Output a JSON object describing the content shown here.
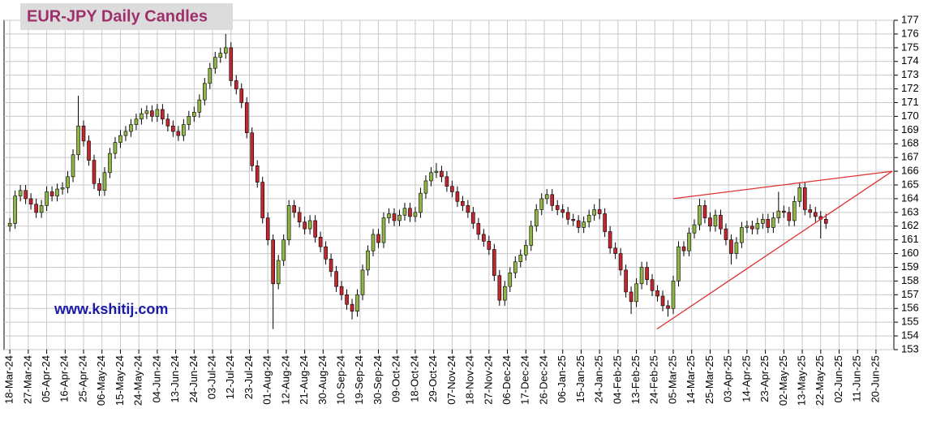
{
  "chart_data": {
    "type": "candlestick",
    "title": "EUR-JPY Daily  Candles",
    "watermark": "www.kshitij.com",
    "up_color": "#8fb546",
    "down_color": "#c1272d",
    "grid": true,
    "ylim": [
      153,
      177
    ],
    "yticks": [
      153,
      154,
      155,
      156,
      157,
      158,
      159,
      160,
      161,
      162,
      163,
      164,
      165,
      166,
      167,
      168,
      169,
      170,
      171,
      172,
      173,
      174,
      175,
      176,
      177
    ],
    "xlim": [
      -1.1,
      167.9
    ],
    "xticks": [
      {
        "value": 0,
        "label": "18-Mar-24"
      },
      {
        "value": 3.5,
        "label": "27-Mar-24"
      },
      {
        "value": 7,
        "label": "05-Apr-24"
      },
      {
        "value": 10.5,
        "label": "16-Apr-24"
      },
      {
        "value": 14,
        "label": "25-Apr-24"
      },
      {
        "value": 17.5,
        "label": "06-May-24"
      },
      {
        "value": 21,
        "label": "15-May-24"
      },
      {
        "value": 24.5,
        "label": "24-May-24"
      },
      {
        "value": 28,
        "label": "04-Jun-24"
      },
      {
        "value": 31.5,
        "label": "13-Jun-24"
      },
      {
        "value": 35,
        "label": "24-Jun-24"
      },
      {
        "value": 38.5,
        "label": "03-Jul-24"
      },
      {
        "value": 42,
        "label": "12-Jul-24"
      },
      {
        "value": 45.5,
        "label": "23-Jul-24"
      },
      {
        "value": 49,
        "label": "01-Aug-24"
      },
      {
        "value": 52.5,
        "label": "12-Aug-24"
      },
      {
        "value": 56,
        "label": "21-Aug-24"
      },
      {
        "value": 59.5,
        "label": "30-Aug-24"
      },
      {
        "value": 63,
        "label": "10-Sep-24"
      },
      {
        "value": 66.5,
        "label": "19-Sep-24"
      },
      {
        "value": 70,
        "label": "30-Sep-24"
      },
      {
        "value": 73.5,
        "label": "09-Oct-24"
      },
      {
        "value": 77,
        "label": "18-Oct-24"
      },
      {
        "value": 80.5,
        "label": "29-Oct-24"
      },
      {
        "value": 84,
        "label": "07-Nov-24"
      },
      {
        "value": 87.5,
        "label": "18-Nov-24"
      },
      {
        "value": 91,
        "label": "27-Nov-24"
      },
      {
        "value": 94.5,
        "label": "06-Dec-24"
      },
      {
        "value": 98,
        "label": "17-Dec-24"
      },
      {
        "value": 101.5,
        "label": "26-Dec-24"
      },
      {
        "value": 105,
        "label": "06-Jan-25"
      },
      {
        "value": 108.5,
        "label": "15-Jan-25"
      },
      {
        "value": 112,
        "label": "24-Jan-25"
      },
      {
        "value": 115.5,
        "label": "04-Feb-25"
      },
      {
        "value": 119,
        "label": "13-Feb-25"
      },
      {
        "value": 122.5,
        "label": "24-Feb-25"
      },
      {
        "value": 126,
        "label": "05-Mar-25"
      },
      {
        "value": 129.5,
        "label": "14-Mar-25"
      },
      {
        "value": 133,
        "label": "25-Mar-25"
      },
      {
        "value": 136.5,
        "label": "03-Apr-25"
      },
      {
        "value": 140,
        "label": "14-Apr-25"
      },
      {
        "value": 143.5,
        "label": "23-Apr-25"
      },
      {
        "value": 147,
        "label": "02-May-25"
      },
      {
        "value": 150.5,
        "label": "13-May-25"
      },
      {
        "value": 154,
        "label": "22-May-25"
      },
      {
        "value": 157.5,
        "label": "02-Jun-25"
      },
      {
        "value": 161,
        "label": "11-Jun-25"
      },
      {
        "value": 164.5,
        "label": "20-Jun-25"
      }
    ],
    "open": [
      162.0,
      162.2,
      164.2,
      164.6,
      164.0,
      163.6,
      163.0,
      163.5,
      164.5,
      164.2,
      164.7,
      164.8,
      165.6,
      167.2,
      169.3,
      168.2,
      166.8,
      165.1,
      164.6,
      165.9,
      167.3,
      168.1,
      168.6,
      168.9,
      169.4,
      169.8,
      170.2,
      170.4,
      170.0,
      170.5,
      169.8,
      169.3,
      168.9,
      168.6,
      169.4,
      170.0,
      170.3,
      171.2,
      172.4,
      173.5,
      174.3,
      174.6,
      175.0,
      172.6,
      172.0,
      171.0,
      168.8,
      166.4,
      165.2,
      162.6,
      161.0,
      157.8,
      159.5,
      161.0,
      163.5,
      163.0,
      162.3,
      161.8,
      162.4,
      161.2,
      160.5,
      159.6,
      158.7,
      157.6,
      157.0,
      156.3,
      155.8,
      157.0,
      158.8,
      160.2,
      161.4,
      160.8,
      162.6,
      162.9,
      162.4,
      162.8,
      163.3,
      162.7,
      163.0,
      164.4,
      165.3,
      165.9,
      166.0,
      165.6,
      164.9,
      164.5,
      163.8,
      163.5,
      163.0,
      162.2,
      161.4,
      160.9,
      160.3,
      158.4,
      156.6,
      157.6,
      158.6,
      159.4,
      159.9,
      160.6,
      162.0,
      163.2,
      164.0,
      164.3,
      163.5,
      163.2,
      163.0,
      162.5,
      162.4,
      161.9,
      162.3,
      162.8,
      163.2,
      162.9,
      161.6,
      160.4,
      160.0,
      158.8,
      157.2,
      156.5,
      157.8,
      159.0,
      158.1,
      157.3,
      156.9,
      156.2,
      156.0,
      158.0,
      160.5,
      160.2,
      161.5,
      162.1,
      163.5,
      162.6,
      162.0,
      162.8,
      161.8,
      161.0,
      160.0,
      160.8,
      161.9,
      162.0,
      161.8,
      162.2,
      162.5,
      161.9,
      162.6,
      163.1,
      163.0,
      162.4,
      163.8,
      164.8,
      163.2,
      163.0,
      162.7,
      162.5
    ],
    "high": [
      162.6,
      164.6,
      165.0,
      165.0,
      164.4,
      164.0,
      163.9,
      164.9,
      164.9,
      165.1,
      165.2,
      166.0,
      167.6,
      171.5,
      169.7,
      168.6,
      167.2,
      165.5,
      166.3,
      167.7,
      168.5,
      169.0,
      169.3,
      169.8,
      170.2,
      170.6,
      170.8,
      170.8,
      170.9,
      170.9,
      170.2,
      169.7,
      169.3,
      169.8,
      170.4,
      170.7,
      171.6,
      172.8,
      173.9,
      174.7,
      175.0,
      176.0,
      175.4,
      173.0,
      172.4,
      171.4,
      169.2,
      166.8,
      165.6,
      163.0,
      161.4,
      159.9,
      161.4,
      163.9,
      163.9,
      163.4,
      162.7,
      162.8,
      162.8,
      161.6,
      160.9,
      160.0,
      159.1,
      158.0,
      157.4,
      156.7,
      157.4,
      159.2,
      160.6,
      161.8,
      161.8,
      163.0,
      163.3,
      163.3,
      163.2,
      163.7,
      163.7,
      163.4,
      164.8,
      165.7,
      166.3,
      166.6,
      166.4,
      166.0,
      165.3,
      164.9,
      164.2,
      163.9,
      163.4,
      162.6,
      161.8,
      161.3,
      160.7,
      158.8,
      158.0,
      159.0,
      159.8,
      160.3,
      161.0,
      162.4,
      163.6,
      164.4,
      164.7,
      164.7,
      163.9,
      163.6,
      163.4,
      162.9,
      162.8,
      162.7,
      163.2,
      163.6,
      164.0,
      163.3,
      162.0,
      160.8,
      160.4,
      159.2,
      157.6,
      158.2,
      159.4,
      159.4,
      158.5,
      157.7,
      157.3,
      156.6,
      158.4,
      160.9,
      160.9,
      161.9,
      162.5,
      164.0,
      163.9,
      163.0,
      163.2,
      163.2,
      162.2,
      161.4,
      161.2,
      162.3,
      162.4,
      162.4,
      162.6,
      162.9,
      162.9,
      163.0,
      164.5,
      163.5,
      163.4,
      164.2,
      165.2,
      165.2,
      163.6,
      163.4,
      163.1,
      162.9
    ],
    "low": [
      161.6,
      161.8,
      163.8,
      163.6,
      163.2,
      162.6,
      162.6,
      163.1,
      163.8,
      163.8,
      164.3,
      164.4,
      165.2,
      166.8,
      167.8,
      166.4,
      164.7,
      164.2,
      164.2,
      165.5,
      166.9,
      167.7,
      168.2,
      168.5,
      169.0,
      169.4,
      169.8,
      169.6,
      169.6,
      169.4,
      168.9,
      168.5,
      168.2,
      168.2,
      169.0,
      169.6,
      169.9,
      170.8,
      172.0,
      173.1,
      173.9,
      174.2,
      172.2,
      171.6,
      170.6,
      168.4,
      166.0,
      164.8,
      162.2,
      160.6,
      154.5,
      157.4,
      159.1,
      160.6,
      162.6,
      161.9,
      161.4,
      161.4,
      160.8,
      160.1,
      159.2,
      158.3,
      157.2,
      156.6,
      155.9,
      155.2,
      155.4,
      156.6,
      158.4,
      159.8,
      160.4,
      160.4,
      162.2,
      162.0,
      162.0,
      162.4,
      162.3,
      162.3,
      162.6,
      164.0,
      164.9,
      165.5,
      165.2,
      164.5,
      164.1,
      163.4,
      163.1,
      162.6,
      161.8,
      161.0,
      160.5,
      159.9,
      158.0,
      156.2,
      156.2,
      157.2,
      158.2,
      159.0,
      159.5,
      160.2,
      161.6,
      162.8,
      163.6,
      163.1,
      162.8,
      162.6,
      162.1,
      162.0,
      161.5,
      161.5,
      161.9,
      162.4,
      162.5,
      161.2,
      160.0,
      159.6,
      158.4,
      156.8,
      155.6,
      156.1,
      157.4,
      157.7,
      156.9,
      156.5,
      155.8,
      155.4,
      155.6,
      157.6,
      159.8,
      159.8,
      161.1,
      161.7,
      162.2,
      161.6,
      161.6,
      161.4,
      160.6,
      159.2,
      159.6,
      160.4,
      161.5,
      161.4,
      161.4,
      161.8,
      161.5,
      161.5,
      162.2,
      162.6,
      162.0,
      162.0,
      163.4,
      162.8,
      162.6,
      162.3,
      161.1,
      161.8
    ],
    "close": [
      162.2,
      164.2,
      164.6,
      164.0,
      163.6,
      163.0,
      163.5,
      164.5,
      164.2,
      164.7,
      164.8,
      165.6,
      167.2,
      169.3,
      168.2,
      166.8,
      165.1,
      164.6,
      165.9,
      167.3,
      168.1,
      168.6,
      168.9,
      169.4,
      169.8,
      170.2,
      170.4,
      170.0,
      170.5,
      169.8,
      169.3,
      168.9,
      168.6,
      169.4,
      170.0,
      170.3,
      171.2,
      172.4,
      173.5,
      174.3,
      174.6,
      175.0,
      172.6,
      172.0,
      171.0,
      168.8,
      166.4,
      165.2,
      162.6,
      161.0,
      157.8,
      159.5,
      161.0,
      163.5,
      163.0,
      162.3,
      161.8,
      162.4,
      161.2,
      160.5,
      159.6,
      158.7,
      157.6,
      157.0,
      156.3,
      155.8,
      157.0,
      158.8,
      160.2,
      161.4,
      160.8,
      162.6,
      162.9,
      162.4,
      162.8,
      163.3,
      162.7,
      163.0,
      164.4,
      165.3,
      165.9,
      166.0,
      165.6,
      164.9,
      164.5,
      163.8,
      163.5,
      163.0,
      162.2,
      161.4,
      160.9,
      160.3,
      158.4,
      156.6,
      157.6,
      158.6,
      159.4,
      159.9,
      160.6,
      162.0,
      163.2,
      164.0,
      164.3,
      163.5,
      163.2,
      163.0,
      162.5,
      162.4,
      161.9,
      162.3,
      162.8,
      163.2,
      162.9,
      161.6,
      160.4,
      160.0,
      158.8,
      157.2,
      156.5,
      157.8,
      159.0,
      158.1,
      157.3,
      156.9,
      156.2,
      156.0,
      158.0,
      160.5,
      160.2,
      161.5,
      162.1,
      163.5,
      162.6,
      162.0,
      162.8,
      161.8,
      161.0,
      160.0,
      160.8,
      161.9,
      162.0,
      161.8,
      162.2,
      162.5,
      161.9,
      162.6,
      163.1,
      163.0,
      162.4,
      163.8,
      164.8,
      163.2,
      163.0,
      162.7,
      162.5,
      162.2
    ],
    "trend_color": "#e0312f",
    "trend_lines": [
      {
        "x": [
          126.0,
          167.6
        ],
        "y": [
          164.0,
          166.0
        ]
      },
      {
        "x": [
          122.9,
          167.6
        ],
        "y": [
          154.5,
          166.0
        ]
      }
    ]
  }
}
